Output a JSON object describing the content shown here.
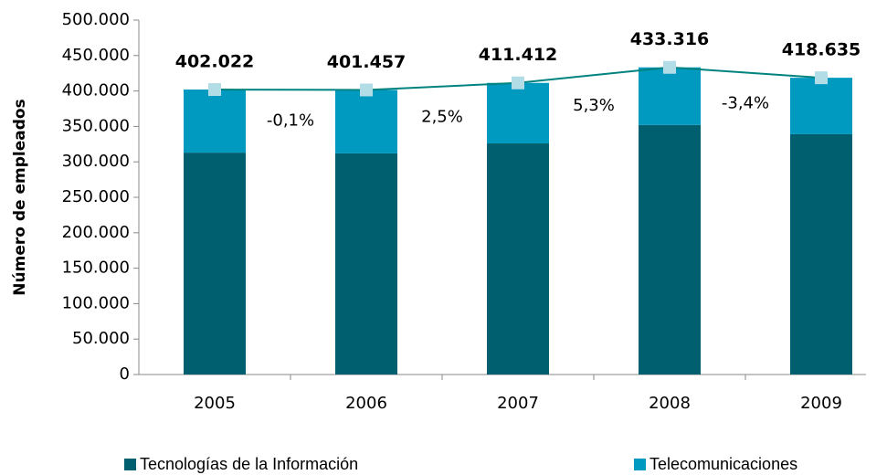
{
  "chart_data": {
    "type": "stacked_bar_line",
    "y_label": "Número de empleados",
    "categories": [
      "2005",
      "2006",
      "2007",
      "2008",
      "2009"
    ],
    "series": [
      {
        "name": "Tecnologías de la Información",
        "color": "#005f6e",
        "values": [
          313000,
          312000,
          326000,
          352000,
          339000
        ]
      },
      {
        "name": "Telecomunicaciones",
        "color": "#0099c0",
        "values": [
          89022,
          89457,
          85412,
          81316,
          79635
        ]
      }
    ],
    "line": {
      "color": "#00837f",
      "marker_color": "#b3dde6",
      "values": [
        402022,
        401457,
        411412,
        433316,
        418635
      ],
      "value_labels": [
        "402.022",
        "401.457",
        "411.412",
        "433.316",
        "418.635"
      ]
    },
    "changes": [
      "-0,1%",
      "2,5%",
      "5,3%",
      "-3,4%"
    ],
    "ylim": [
      0,
      500000
    ],
    "yticks": [
      0,
      {
        "value": 50000,
        "label": "50.000"
      },
      {
        "value": 100000,
        "label": "100.000"
      },
      {
        "value": 150000,
        "label": "150.000"
      },
      {
        "value": 200000,
        "label": "200.000"
      },
      {
        "value": 250000,
        "label": "250.000"
      },
      {
        "value": 300000,
        "label": "300.000"
      },
      {
        "value": 350000,
        "label": "350.000"
      },
      {
        "value": 400000,
        "label": "400.000"
      },
      {
        "value": 450000,
        "label": "450.000"
      },
      {
        "value": 500000,
        "label": "500.000"
      }
    ]
  }
}
